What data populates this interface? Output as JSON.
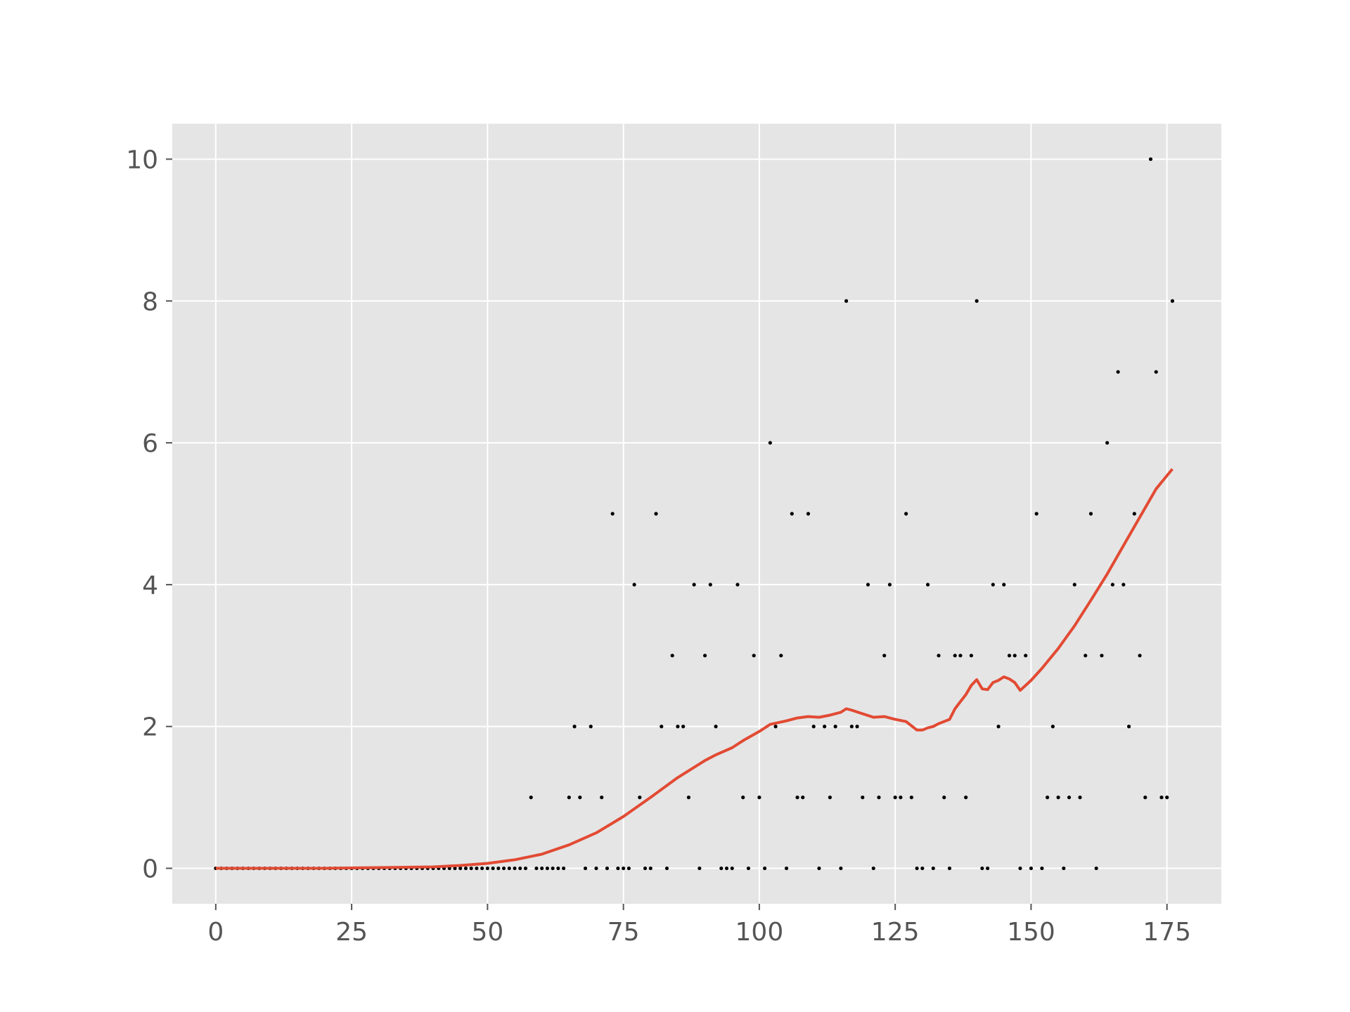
{
  "chart_data": {
    "type": "scatter",
    "title": "",
    "xlabel": "",
    "ylabel": "",
    "xlim": [
      -8,
      185
    ],
    "ylim": [
      -0.5,
      10.5
    ],
    "x_ticks": [
      0,
      25,
      50,
      75,
      100,
      125,
      150,
      175
    ],
    "y_ticks": [
      0,
      2,
      4,
      6,
      8,
      10
    ],
    "x_tick_labels": [
      "0",
      "25",
      "50",
      "75",
      "100",
      "125",
      "150",
      "175"
    ],
    "y_tick_labels": [
      "0",
      "2",
      "4",
      "6",
      "8",
      "10"
    ],
    "grid": true,
    "style": "ggplot",
    "colors": {
      "background": "#E5E5E5",
      "grid": "#FFFFFF",
      "points": "#000000",
      "fit_line": "#E24A33"
    },
    "series": [
      {
        "kind": "points",
        "x": [
          0,
          1,
          2,
          3,
          4,
          5,
          6,
          7,
          8,
          9,
          10,
          11,
          12,
          13,
          14,
          15,
          16,
          17,
          18,
          19,
          20,
          21,
          22,
          23,
          24,
          25,
          26,
          27,
          28,
          29,
          30,
          31,
          32,
          33,
          34,
          35,
          36,
          37,
          38,
          39,
          40,
          41,
          42,
          43,
          44,
          45,
          46,
          47,
          48,
          49,
          50,
          51,
          52,
          53,
          54,
          55,
          56,
          57,
          58,
          59,
          60,
          61,
          62,
          63,
          64,
          65,
          66,
          67,
          68,
          69,
          70,
          71,
          72,
          73,
          74,
          75,
          76,
          77,
          78,
          79,
          80,
          81,
          82,
          83,
          84,
          85,
          86,
          87,
          88,
          89,
          90,
          91,
          92,
          93,
          94,
          95,
          96,
          97,
          98,
          99,
          100,
          101,
          102,
          103,
          104,
          105,
          106,
          107,
          108,
          109,
          110,
          111,
          112,
          113,
          114,
          115,
          116,
          117,
          118,
          119,
          120,
          121,
          122,
          123,
          124,
          125,
          126,
          127,
          128,
          129,
          130,
          131,
          132,
          133,
          134,
          135,
          136,
          137,
          138,
          139,
          140,
          141,
          142,
          143,
          144,
          145,
          146,
          147,
          148,
          149,
          150,
          151,
          152,
          153,
          154,
          155,
          156,
          157,
          158,
          159,
          160,
          161,
          162,
          163,
          164,
          165,
          166,
          167,
          168,
          169,
          170,
          171,
          172,
          173,
          174,
          175,
          176
        ],
        "y": [
          0,
          0,
          0,
          0,
          0,
          0,
          0,
          0,
          0,
          0,
          0,
          0,
          0,
          0,
          0,
          0,
          0,
          0,
          0,
          0,
          0,
          0,
          0,
          0,
          0,
          0,
          0,
          0,
          0,
          0,
          0,
          0,
          0,
          0,
          0,
          0,
          0,
          0,
          0,
          0,
          0,
          0,
          0,
          0,
          0,
          0,
          0,
          0,
          0,
          0,
          0,
          0,
          0,
          0,
          0,
          0,
          0,
          0,
          1,
          0,
          0,
          0,
          0,
          0,
          0,
          1,
          2,
          1,
          0,
          2,
          0,
          1,
          0,
          5,
          0,
          0,
          0,
          4,
          1,
          0,
          0,
          5,
          2,
          0,
          3,
          2,
          2,
          1,
          4,
          0,
          3,
          4,
          2,
          0,
          0,
          0,
          4,
          1,
          0,
          3,
          1,
          0,
          6,
          2,
          3,
          0,
          5,
          1,
          1,
          5,
          2,
          0,
          2,
          1,
          2,
          0,
          8,
          2,
          2,
          1,
          4,
          0,
          1,
          3,
          4,
          1,
          1,
          5,
          1,
          0,
          0,
          4,
          0,
          3,
          1,
          0,
          3,
          3,
          1,
          3,
          8,
          0,
          0,
          4,
          2,
          4,
          3,
          3,
          0,
          3,
          0,
          5,
          0,
          1,
          2,
          1,
          0,
          1,
          4,
          1,
          3,
          5,
          0,
          3,
          6,
          4,
          7,
          4,
          2,
          5,
          3,
          1,
          10,
          7,
          1,
          1,
          8
        ]
      },
      {
        "kind": "line",
        "x": [
          0,
          10,
          20,
          30,
          35,
          40,
          45,
          50,
          55,
          60,
          65,
          70,
          75,
          80,
          85,
          90,
          92,
          95,
          97,
          100,
          102,
          105,
          107,
          109,
          111,
          113,
          115,
          116,
          117,
          119,
          121,
          123,
          125,
          127,
          129,
          130,
          131,
          132,
          133,
          135,
          136,
          137,
          138,
          139,
          140,
          141,
          142,
          143,
          144,
          145,
          146,
          147,
          148,
          150,
          152,
          155,
          158,
          161,
          164,
          167,
          170,
          173,
          176
        ],
        "y": [
          0,
          0,
          0,
          0.01,
          0.015,
          0.02,
          0.04,
          0.07,
          0.12,
          0.2,
          0.33,
          0.5,
          0.73,
          1.0,
          1.28,
          1.52,
          1.6,
          1.7,
          1.8,
          1.93,
          2.03,
          2.08,
          2.12,
          2.14,
          2.13,
          2.16,
          2.2,
          2.25,
          2.23,
          2.18,
          2.13,
          2.14,
          2.1,
          2.07,
          1.95,
          1.95,
          1.98,
          2.0,
          2.04,
          2.1,
          2.25,
          2.35,
          2.45,
          2.58,
          2.66,
          2.53,
          2.52,
          2.62,
          2.65,
          2.7,
          2.67,
          2.62,
          2.51,
          2.65,
          2.82,
          3.1,
          3.42,
          3.78,
          4.15,
          4.55,
          4.95,
          5.35,
          5.63
        ]
      }
    ]
  }
}
